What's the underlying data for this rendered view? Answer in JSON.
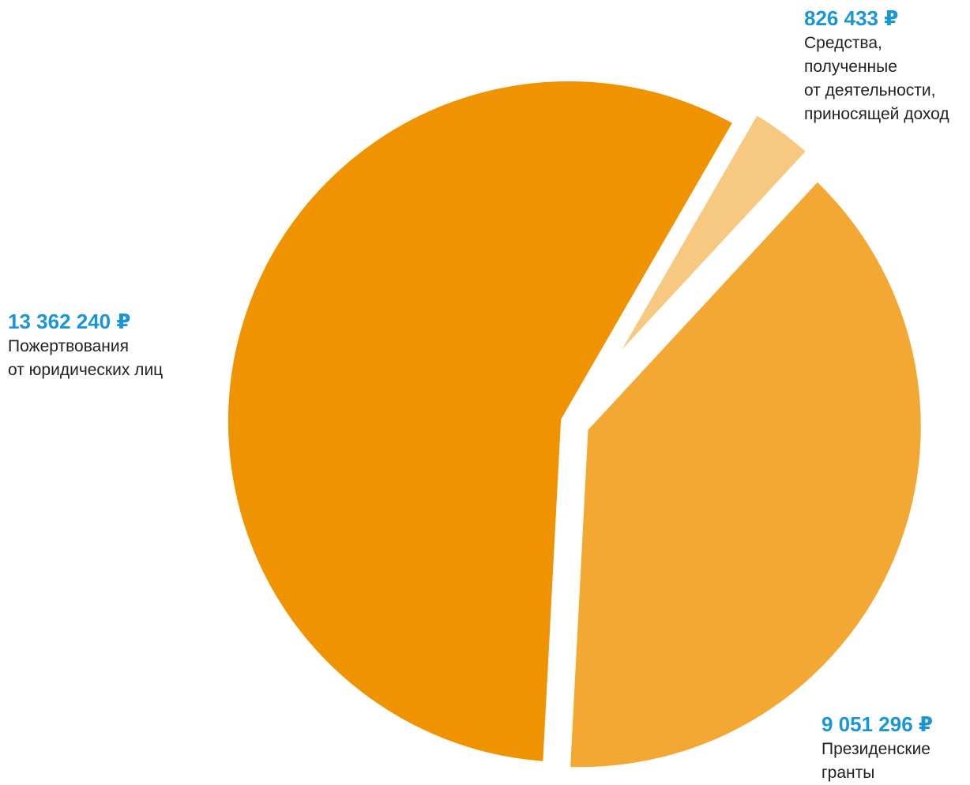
{
  "chart_data": {
    "type": "pie",
    "currency": "₽",
    "slices": [
      {
        "value": 13362240,
        "value_label": "13 362 240 ₽",
        "label": "Пожертвования\nот юридических лиц",
        "color": "#f09300"
      },
      {
        "value": 826433,
        "value_label": "826 433 ₽",
        "label": "Средства,\nполученные\nот деятельности,\nприносящей доход",
        "color": "#f7c87f"
      },
      {
        "value": 9051296,
        "value_label": "9 051 296 ₽",
        "label": "Президенские\nгранты",
        "color": "#f4a834"
      }
    ],
    "legend": "labels-outside",
    "accent_color": "#1a96d4"
  }
}
